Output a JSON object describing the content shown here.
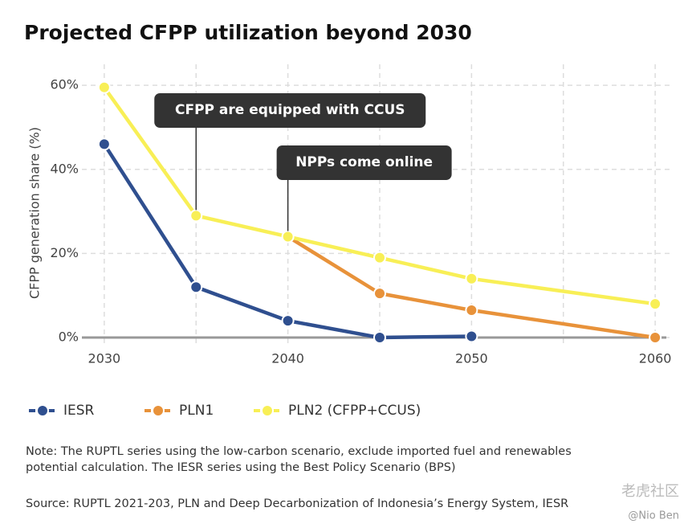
{
  "chart_data": {
    "type": "line",
    "title": "Projected CFPP utilization beyond 2030",
    "y_label": "CFPP generation share (%)",
    "x": [
      2030,
      2035,
      2040,
      2045,
      2050,
      2060
    ],
    "xlim": [
      2029,
      2061
    ],
    "xticks": [
      2030,
      {
        "value": 2035,
        "label": null
      },
      2040,
      {
        "value": 2045,
        "label": null
      },
      2050,
      {
        "value": 2055,
        "label": null
      },
      2060
    ],
    "ylim": [
      -2,
      65
    ],
    "yticks": [
      {
        "value": 0,
        "label": "0%"
      },
      {
        "value": 20,
        "label": "20%"
      },
      {
        "value": 40,
        "label": "40%"
      },
      {
        "value": 60,
        "label": "60%"
      }
    ],
    "grid": true,
    "legend": "bottom",
    "series": [
      {
        "name": "IESR",
        "color": "#2f4f8f",
        "values": [
          46,
          12,
          4,
          0,
          0.3,
          null
        ]
      },
      {
        "name": "PLN1",
        "color": "#e8923a",
        "values": [
          null,
          null,
          24,
          10.5,
          6.5,
          0
        ]
      },
      {
        "name": "PLN2 (CFPP+CCUS)",
        "color": "#f8ef56",
        "values": [
          59.5,
          29,
          24,
          19,
          14,
          8
        ]
      }
    ],
    "annotations": [
      {
        "text": "CFPP are equipped with CCUS",
        "x": 2035,
        "y": 29
      },
      {
        "text": "NPPs come online",
        "x": 2040,
        "y": 24
      }
    ],
    "note": [
      "Note: The RUPTL series using the low-carbon scenario, exclude imported fuel and renewables",
      "potential calculation. The IESR series using the Best Policy Scenario (BPS)"
    ],
    "source": "Source: RUPTL 2021-203, PLN and Deep Decarbonization of Indonesia’s Energy System, IESR",
    "watermark": [
      "老虎社区",
      "@Nio Ben"
    ]
  }
}
